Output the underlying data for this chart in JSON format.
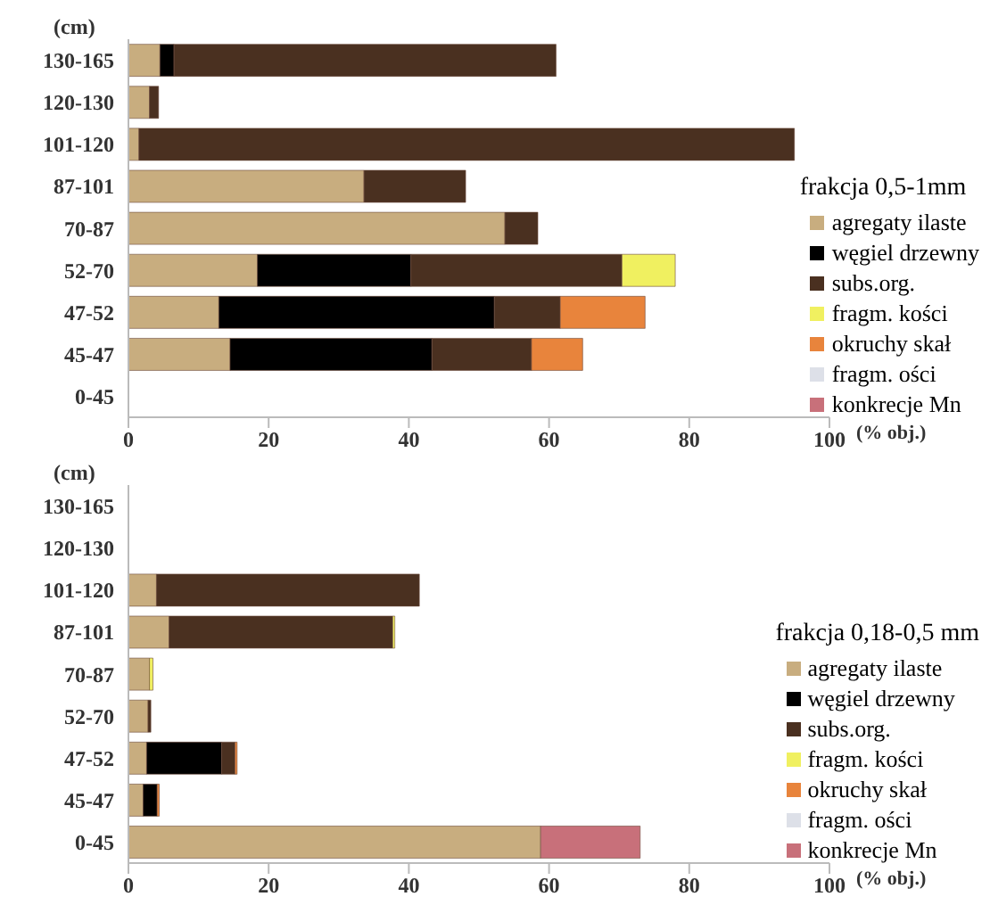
{
  "chart_data": [
    {
      "type": "bar",
      "orientation": "horizontal",
      "stacked": true,
      "legend_title": "frakcja 0,5-1mm",
      "xlabel": "(% obj.)",
      "ylabel": "(cm)",
      "legend": "right",
      "categories": [
        "130-165",
        "120-130",
        "101-120",
        "87-101",
        "70-87",
        "52-70",
        "47-52",
        "45-47",
        "0-45"
      ],
      "xlim": [
        0,
        100
      ],
      "xticks": [
        0,
        20,
        40,
        60,
        80,
        100
      ],
      "series": [
        {
          "name": "agregaty ilaste",
          "color": "#c8ad7f",
          "values": [
            4.5,
            3,
            1.5,
            33.6,
            53.7,
            18.4,
            12.9,
            14.5,
            null
          ]
        },
        {
          "name": "węgiel drzewny",
          "color": "#000000",
          "values": [
            2,
            null,
            null,
            null,
            null,
            21.9,
            39.3,
            28.8,
            null
          ]
        },
        {
          "name": "subs.org.",
          "color": "#4a3020",
          "values": [
            54.5,
            1.3,
            93.5,
            14.5,
            4.7,
            30.1,
            9.4,
            14.2,
            null
          ]
        },
        {
          "name": "fragm. kości",
          "color": "#f0f060",
          "values": [
            null,
            null,
            null,
            null,
            null,
            7.6,
            null,
            null,
            null
          ]
        },
        {
          "name": "okruchy skał",
          "color": "#e8843c",
          "values": [
            null,
            null,
            null,
            null,
            null,
            null,
            12.1,
            7.3,
            null
          ]
        },
        {
          "name": "fragm. ości",
          "color": "#dde0e8",
          "values": [
            null,
            null,
            null,
            null,
            null,
            null,
            null,
            null,
            null
          ]
        },
        {
          "name": "konkrecje Mn",
          "color": "#c8707a",
          "values": [
            null,
            null,
            null,
            null,
            null,
            null,
            null,
            null,
            null
          ]
        }
      ]
    },
    {
      "type": "bar",
      "orientation": "horizontal",
      "stacked": true,
      "legend_title": "frakcja 0,18-0,5 mm",
      "xlabel": "(% obj.)",
      "ylabel": "(cm)",
      "legend": "right",
      "categories": [
        "130-165",
        "120-130",
        "101-120",
        "87-101",
        "70-87",
        "52-70",
        "47-52",
        "45-47",
        "0-45"
      ],
      "xlim": [
        0,
        100
      ],
      "xticks": [
        0,
        20,
        40,
        60,
        80,
        100
      ],
      "series": [
        {
          "name": "agregaty ilaste",
          "color": "#c8ad7f",
          "values": [
            null,
            null,
            4,
            5.8,
            3,
            2.8,
            2.6,
            2.1,
            58.8
          ]
        },
        {
          "name": "węgiel drzewny",
          "color": "#000000",
          "values": [
            null,
            null,
            null,
            null,
            null,
            null,
            10.7,
            2,
            null
          ]
        },
        {
          "name": "subs.org.",
          "color": "#4a3020",
          "values": [
            null,
            null,
            37.5,
            31.9,
            null,
            0.4,
            1.9,
            null,
            null
          ]
        },
        {
          "name": "fragm. kości",
          "color": "#f0f060",
          "values": [
            null,
            null,
            null,
            0.3,
            0.5,
            null,
            null,
            null,
            null
          ]
        },
        {
          "name": "okruchy skał",
          "color": "#e8843c",
          "values": [
            null,
            null,
            null,
            null,
            null,
            null,
            0.3,
            0.3,
            null
          ]
        },
        {
          "name": "fragm. ości",
          "color": "#dde0e8",
          "values": [
            null,
            null,
            null,
            null,
            null,
            null,
            null,
            null,
            null
          ]
        },
        {
          "name": "konkrecje Mn",
          "color": "#c8707a",
          "values": [
            null,
            null,
            null,
            null,
            null,
            null,
            null,
            null,
            14.2
          ]
        }
      ]
    }
  ]
}
